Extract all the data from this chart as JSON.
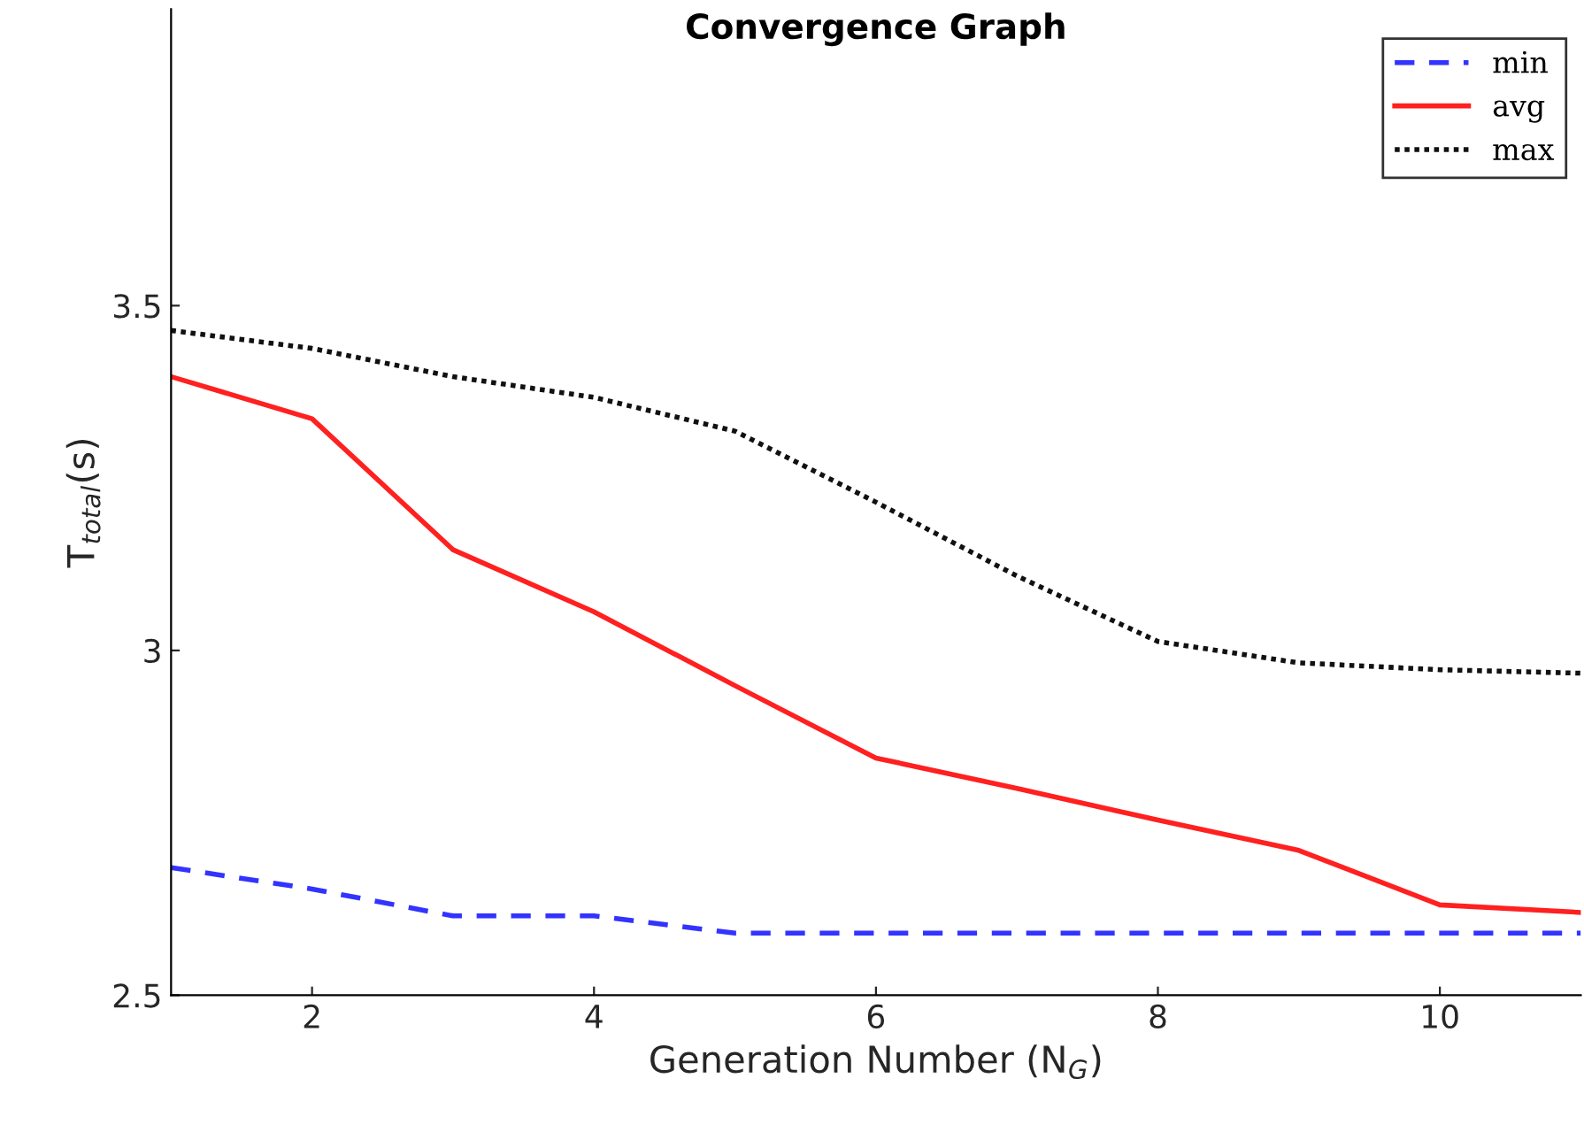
{
  "chart_data": {
    "type": "line",
    "title": "Convergence Graph",
    "xlabel": "Generation Number (N$_{G}$)",
    "ylabel": "T$_{total}$(s)",
    "x": [
      1,
      2,
      3,
      4,
      5,
      6,
      7,
      8,
      9,
      10,
      11
    ],
    "series": [
      {
        "name": "min",
        "color": "#3333ff",
        "line_style": "dashed",
        "values": [
          2.685,
          2.654,
          2.615,
          2.615,
          2.59,
          2.59,
          2.59,
          2.59,
          2.59,
          2.59,
          2.59
        ]
      },
      {
        "name": "avg",
        "color": "#ff2020",
        "line_style": "solid",
        "values": [
          3.397,
          3.336,
          3.146,
          3.056,
          2.949,
          2.844,
          2.8,
          2.754,
          2.71,
          2.631,
          2.62
        ]
      },
      {
        "name": "max",
        "color": "#111111",
        "line_style": "dotted",
        "values": [
          3.464,
          3.438,
          3.397,
          3.367,
          3.318,
          3.215,
          3.108,
          3.013,
          2.982,
          2.972,
          2.967
        ]
      }
    ],
    "xlim": [
      1,
      11
    ],
    "ylim": [
      2.5,
      3.93
    ],
    "xticks": [
      2,
      4,
      6,
      8,
      10
    ],
    "yticks": [
      2.5,
      3,
      3.5
    ],
    "grid": false,
    "legend": "top right",
    "marker": "none"
  }
}
